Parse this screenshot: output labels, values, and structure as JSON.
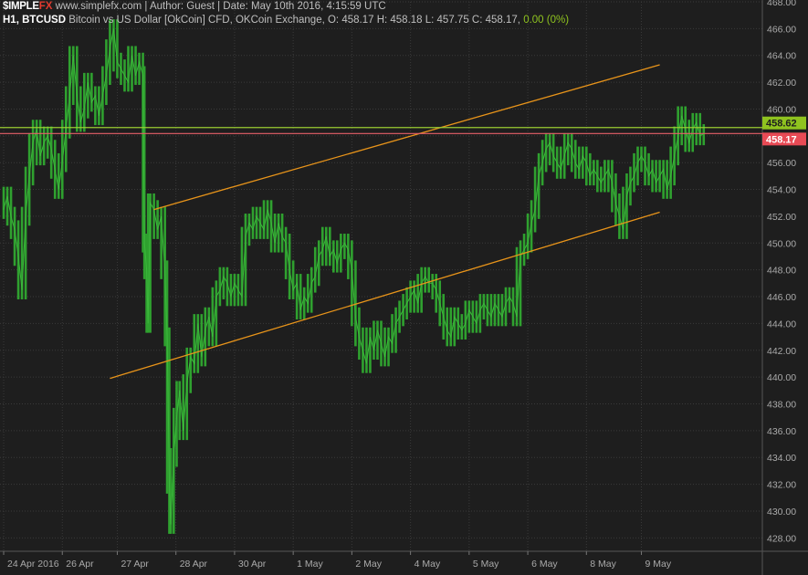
{
  "header": {
    "logo_part1": "$IMPLE",
    "logo_part2": "FX",
    "site_info": "www.simplefx.com | Author: Guest | Date: May 10th 2016, 4:15:59 UTC",
    "timeframe_symbol": "H1, BTCUSD",
    "description": "Bitcoin vs US Dollar [OkCoin] CFD, OKCoin Exchange, O: 458.17 H: 458.18 L: 457.75 C: 458.17,",
    "change": "0.00 (0%)"
  },
  "chart_data": {
    "type": "line",
    "ylim": [
      427,
      468
    ],
    "y_ticks": [
      428,
      430,
      432,
      434,
      436,
      438,
      440,
      442,
      444,
      446,
      448,
      450,
      452,
      454,
      456,
      458,
      460,
      462,
      464,
      466,
      468
    ],
    "y_tick_labels": [
      "428.00",
      "430.00",
      "432.00",
      "434.00",
      "436.00",
      "438.00",
      "440.00",
      "442.00",
      "444.00",
      "446.00",
      "448.00",
      "450.00",
      "452.00",
      "454.00",
      "456.00",
      "458.00",
      "460.00",
      "462.00",
      "464.00",
      "466.00",
      "468.00"
    ],
    "x_labels": [
      {
        "label": "24 Apr 2016",
        "t": 0
      },
      {
        "label": "26 Apr",
        "t": 0.8
      },
      {
        "label": "27 Apr",
        "t": 1.55
      },
      {
        "label": "28 Apr",
        "t": 2.35
      },
      {
        "label": "30 Apr",
        "t": 3.15
      },
      {
        "label": "1 May",
        "t": 3.95
      },
      {
        "label": "2 May",
        "t": 4.75
      },
      {
        "label": "4 May",
        "t": 5.55
      },
      {
        "label": "5 May",
        "t": 6.35
      },
      {
        "label": "6 May",
        "t": 7.15
      },
      {
        "label": "8 May",
        "t": 7.95
      },
      {
        "label": "9 May",
        "t": 8.7
      }
    ],
    "t_range": [
      -0.05,
      10.35
    ],
    "series": [
      {
        "color": "#2fa12f",
        "points": [
          [
            0.0,
            452.5
          ],
          [
            0.05,
            453.5
          ],
          [
            0.1,
            452.0
          ],
          [
            0.15,
            451.0
          ],
          [
            0.2,
            449.0
          ],
          [
            0.25,
            446.5
          ],
          [
            0.3,
            452.0
          ],
          [
            0.35,
            455.0
          ],
          [
            0.4,
            457.5
          ],
          [
            0.45,
            458.5
          ],
          [
            0.5,
            456.5
          ],
          [
            0.55,
            457.5
          ],
          [
            0.6,
            458.0
          ],
          [
            0.65,
            457.0
          ],
          [
            0.7,
            455.5
          ],
          [
            0.75,
            454.0
          ],
          [
            0.8,
            456.0
          ],
          [
            0.85,
            458.5
          ],
          [
            0.9,
            461.0
          ],
          [
            0.95,
            464.0
          ],
          [
            1.0,
            461.0
          ],
          [
            1.05,
            459.0
          ],
          [
            1.1,
            460.0
          ],
          [
            1.15,
            462.0
          ],
          [
            1.2,
            460.5
          ],
          [
            1.25,
            461.0
          ],
          [
            1.3,
            459.5
          ],
          [
            1.35,
            461.0
          ],
          [
            1.4,
            462.5
          ],
          [
            1.45,
            464.5
          ],
          [
            1.5,
            466.0
          ],
          [
            1.55,
            463.5
          ],
          [
            1.6,
            463.0
          ],
          [
            1.65,
            462.5
          ],
          [
            1.7,
            462.0
          ],
          [
            1.75,
            464.0
          ],
          [
            1.8,
            462.5
          ],
          [
            1.85,
            463.5
          ],
          [
            1.9,
            462.5
          ],
          [
            1.92,
            450.0
          ],
          [
            1.95,
            448.0
          ],
          [
            1.97,
            444.0
          ],
          [
            2.0,
            453.0
          ],
          [
            2.05,
            452.5
          ],
          [
            2.1,
            451.0
          ],
          [
            2.15,
            452.0
          ],
          [
            2.2,
            448.0
          ],
          [
            2.23,
            443.0
          ],
          [
            2.26,
            432.0
          ],
          [
            2.28,
            429.0
          ],
          [
            2.32,
            434.0
          ],
          [
            2.36,
            437.0
          ],
          [
            2.4,
            439.0
          ],
          [
            2.45,
            436.0
          ],
          [
            2.5,
            439.5
          ],
          [
            2.55,
            441.5
          ],
          [
            2.6,
            441.0
          ],
          [
            2.65,
            444.0
          ],
          [
            2.7,
            441.5
          ],
          [
            2.75,
            443.5
          ],
          [
            2.8,
            444.5
          ],
          [
            2.85,
            443.0
          ],
          [
            2.9,
            446.0
          ],
          [
            2.95,
            446.5
          ],
          [
            3.0,
            447.5
          ],
          [
            3.05,
            447.0
          ],
          [
            3.1,
            446.0
          ],
          [
            3.15,
            447.0
          ],
          [
            3.2,
            446.5
          ],
          [
            3.25,
            446.0
          ],
          [
            3.3,
            450.5
          ],
          [
            3.35,
            451.5
          ],
          [
            3.4,
            451.0
          ],
          [
            3.45,
            452.0
          ],
          [
            3.5,
            451.5
          ],
          [
            3.55,
            451.0
          ],
          [
            3.6,
            452.5
          ],
          [
            3.65,
            451.5
          ],
          [
            3.7,
            450.0
          ],
          [
            3.75,
            451.5
          ],
          [
            3.8,
            450.5
          ],
          [
            3.85,
            450.0
          ],
          [
            3.9,
            448.0
          ],
          [
            3.95,
            446.5
          ],
          [
            4.0,
            447.0
          ],
          [
            4.05,
            445.0
          ],
          [
            4.1,
            446.0
          ],
          [
            4.15,
            445.5
          ],
          [
            4.2,
            447.0
          ],
          [
            4.25,
            447.5
          ],
          [
            4.3,
            449.0
          ],
          [
            4.35,
            449.5
          ],
          [
            4.4,
            450.5
          ],
          [
            4.45,
            449.0
          ],
          [
            4.5,
            449.5
          ],
          [
            4.55,
            448.5
          ],
          [
            4.6,
            449.5
          ],
          [
            4.65,
            450.0
          ],
          [
            4.7,
            449.5
          ],
          [
            4.75,
            448.0
          ],
          [
            4.8,
            444.5
          ],
          [
            4.85,
            443.0
          ],
          [
            4.9,
            442.0
          ],
          [
            4.95,
            441.0
          ],
          [
            5.0,
            443.0
          ],
          [
            5.05,
            442.0
          ],
          [
            5.1,
            443.5
          ],
          [
            5.15,
            442.5
          ],
          [
            5.2,
            441.5
          ],
          [
            5.25,
            443.0
          ],
          [
            5.3,
            442.5
          ],
          [
            5.35,
            444.0
          ],
          [
            5.4,
            444.5
          ],
          [
            5.45,
            445.0
          ],
          [
            5.5,
            445.5
          ],
          [
            5.55,
            446.0
          ],
          [
            5.6,
            446.5
          ],
          [
            5.65,
            445.5
          ],
          [
            5.7,
            447.0
          ],
          [
            5.75,
            447.5
          ],
          [
            5.8,
            447.0
          ],
          [
            5.85,
            447.0
          ],
          [
            5.9,
            446.5
          ],
          [
            5.95,
            445.5
          ],
          [
            6.0,
            444.5
          ],
          [
            6.05,
            443.5
          ],
          [
            6.1,
            443.0
          ],
          [
            6.15,
            444.5
          ],
          [
            6.2,
            444.0
          ],
          [
            6.25,
            443.5
          ],
          [
            6.3,
            444.0
          ],
          [
            6.35,
            445.0
          ],
          [
            6.4,
            444.5
          ],
          [
            6.45,
            444.0
          ],
          [
            6.5,
            445.0
          ],
          [
            6.55,
            445.5
          ],
          [
            6.6,
            445.0
          ],
          [
            6.65,
            444.5
          ],
          [
            6.7,
            445.5
          ],
          [
            6.75,
            445.0
          ],
          [
            6.8,
            444.5
          ],
          [
            6.85,
            445.5
          ],
          [
            6.9,
            446.0
          ],
          [
            6.95,
            445.5
          ],
          [
            7.0,
            444.5
          ],
          [
            7.05,
            449.0
          ],
          [
            7.1,
            449.5
          ],
          [
            7.15,
            450.0
          ],
          [
            7.2,
            451.5
          ],
          [
            7.25,
            452.5
          ],
          [
            7.3,
            455.0
          ],
          [
            7.35,
            456.0
          ],
          [
            7.4,
            457.0
          ],
          [
            7.45,
            457.5
          ],
          [
            7.5,
            456.5
          ],
          [
            7.55,
            456.0
          ],
          [
            7.6,
            455.5
          ],
          [
            7.65,
            456.5
          ],
          [
            7.7,
            457.5
          ],
          [
            7.75,
            457.0
          ],
          [
            7.8,
            456.0
          ],
          [
            7.85,
            455.5
          ],
          [
            7.9,
            456.5
          ],
          [
            7.95,
            456.0
          ],
          [
            8.0,
            455.0
          ],
          [
            8.05,
            455.5
          ],
          [
            8.1,
            455.0
          ],
          [
            8.15,
            454.5
          ],
          [
            8.2,
            455.0
          ],
          [
            8.25,
            455.5
          ],
          [
            8.3,
            454.5
          ],
          [
            8.35,
            453.0
          ],
          [
            8.4,
            452.0
          ],
          [
            8.45,
            451.0
          ],
          [
            8.5,
            453.5
          ],
          [
            8.55,
            454.5
          ],
          [
            8.6,
            455.0
          ],
          [
            8.65,
            456.0
          ],
          [
            8.7,
            456.5
          ],
          [
            8.75,
            456.0
          ],
          [
            8.8,
            455.0
          ],
          [
            8.85,
            455.5
          ],
          [
            8.9,
            454.5
          ],
          [
            8.95,
            455.0
          ],
          [
            9.0,
            455.5
          ],
          [
            9.05,
            454.0
          ],
          [
            9.1,
            455.0
          ],
          [
            9.15,
            456.5
          ],
          [
            9.2,
            458.0
          ],
          [
            9.25,
            459.5
          ],
          [
            9.3,
            458.5
          ],
          [
            9.35,
            457.5
          ],
          [
            9.4,
            458.5
          ],
          [
            9.45,
            459.0
          ],
          [
            9.5,
            458.0
          ],
          [
            9.55,
            458.17
          ]
        ]
      }
    ],
    "trendlines": [
      {
        "color": "#e8941a",
        "from": [
          2.05,
          452.5
        ],
        "to": [
          8.95,
          463.3
        ]
      },
      {
        "color": "#e8941a",
        "from": [
          1.45,
          439.9
        ],
        "to": [
          8.95,
          452.3
        ]
      }
    ],
    "horizontal_lines": [
      {
        "value": 458.62,
        "label": "458.62",
        "line_color": "#9acd32",
        "flag_color": "#8fc31f",
        "text_color": "#1e1e1e"
      },
      {
        "value": 458.17,
        "label": "458.17",
        "line_color": "#e8606a",
        "flag_color": "#e84a55",
        "text_color": "#ffffff"
      }
    ],
    "grid": true
  },
  "colors": {
    "background": "#1e1e1e",
    "grid": "#3a3a3a",
    "axis_text": "#aaaaaa"
  }
}
